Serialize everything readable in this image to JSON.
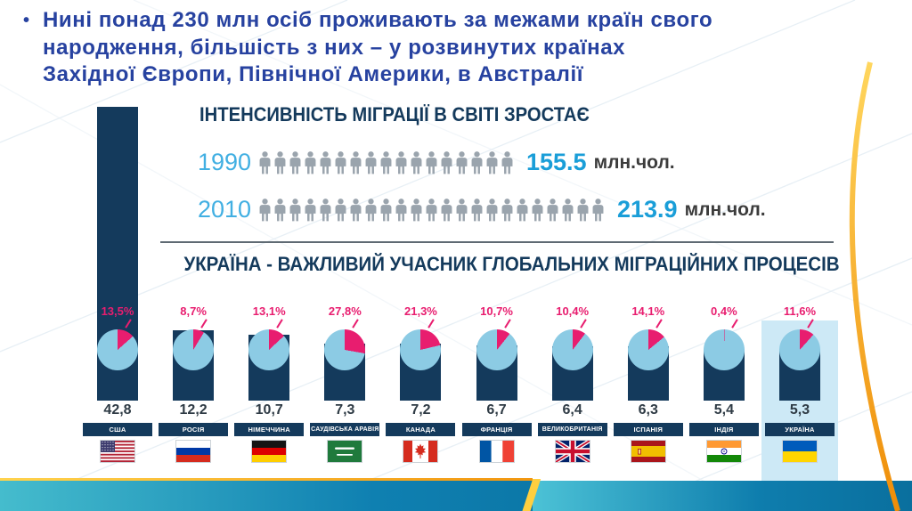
{
  "slide": {
    "bullet_marker": "•",
    "bullet_text": "Нині понад 230 млн осіб проживають за межами країн свого\nнародження, більшість з них – у розвинутих країнах\nЗахідної Європи, Північної Америки, в Австралії"
  },
  "infographic": {
    "title": "ІНТЕНСИВНІСТЬ МІГРАЦІЇ В СВІТІ ЗРОСТАЄ",
    "rows": [
      {
        "year": "1990",
        "value": "155.5",
        "unit": "млн.чол.",
        "icon_count": 17
      },
      {
        "year": "2010",
        "value": "213.9",
        "unit": "млн.чол.",
        "icon_count": 23
      }
    ],
    "section_title": "УКРАЇНА - ВАЖЛИВИЙ УЧАСНИК ГЛОБАЛЬНИХ МІГРАЦІЙНИХ ПРОЦЕСІВ"
  },
  "chart_data": [
    {
      "type": "bar",
      "subtype": "pictogram",
      "title": "ІНТЕНСИВНІСТЬ МІГРАЦІЇ В СВІТІ ЗРОСТАЄ",
      "categories": [
        "1990",
        "2010"
      ],
      "values": [
        155.5,
        213.9
      ],
      "unit": "млн.чол."
    },
    {
      "type": "bar",
      "subtype": "bar-with-pie-percent",
      "title": "УКРАЇНА - ВАЖЛИВИЙ УЧАСНИК ГЛОБАЛЬНИХ МІГРАЦІЙНИХ ПРОЦЕСІВ",
      "categories": [
        "США",
        "РОСІЯ",
        "НІМЕЧЧИНА",
        "САУДІВСЬКА АРАВІЯ",
        "КАНАДА",
        "ФРАНЦІЯ",
        "ВЕЛИКОБРИТАНІЯ",
        "ІСПАНІЯ",
        "ІНДІЯ",
        "УКРАЇНА"
      ],
      "series": [
        {
          "name": "migrants_mln",
          "values": [
            42.8,
            12.2,
            10.7,
            7.3,
            7.2,
            6.7,
            6.4,
            6.3,
            5.4,
            5.3
          ],
          "labels": [
            "42,8",
            "12,2",
            "10,7",
            "7,3",
            "7,2",
            "6,7",
            "6,4",
            "6,3",
            "5,4",
            "5,3"
          ]
        },
        {
          "name": "migrants_percent",
          "values": [
            13.5,
            8.7,
            13.1,
            27.8,
            21.3,
            10.7,
            10.4,
            14.1,
            0.4,
            11.6
          ],
          "labels": [
            "13,5%",
            "8,7%",
            "13,1%",
            "27,8%",
            "21,3%",
            "10,7%",
            "10,4%",
            "14,1%",
            "0,4%",
            "11,6%"
          ]
        }
      ],
      "flags": [
        "usa",
        "russia",
        "germany",
        "saudi-arabia",
        "canada",
        "france",
        "uk",
        "spain",
        "india",
        "ukraine"
      ],
      "highlight_category": "УКРАЇНА"
    }
  ],
  "colors": {
    "navy": "#143a5c",
    "blue_accent": "#1a9ed8",
    "year_blue": "#41afe2",
    "pink": "#e81d6f",
    "pie_fill": "#8ccbe4",
    "bullet_blue": "#2742a0",
    "highlight": "#cde9f6",
    "icon_gray": "#9aa4ad",
    "orange": "#f6a81c",
    "teal": "#1285b3"
  }
}
